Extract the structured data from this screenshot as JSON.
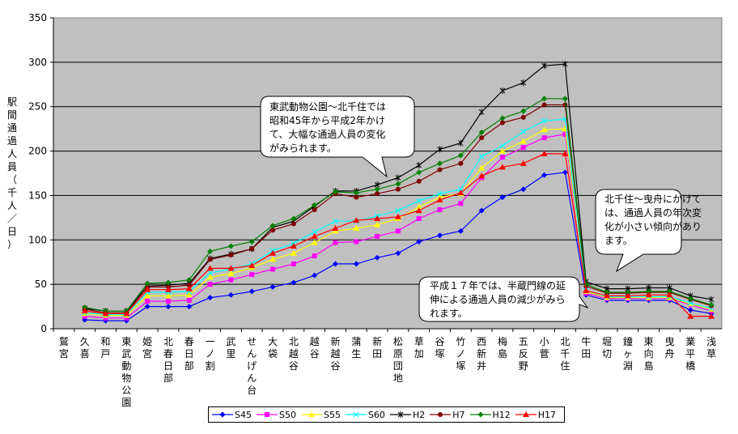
{
  "chart_data": {
    "type": "line",
    "ylabel": "駅間通過人員（千人／日）",
    "ylim": [
      0,
      350
    ],
    "yticks": [
      0,
      50,
      100,
      150,
      200,
      250,
      300,
      350
    ],
    "grid": true,
    "legend_position": "bottom",
    "categories": [
      "鷲宮",
      "久喜",
      "和戸",
      "東武動物公園",
      "姫宮",
      "北春日部",
      "春日部",
      "一ノ割",
      "武里",
      "せんげん台",
      "大袋",
      "北越谷",
      "越谷",
      "新越谷",
      "蒲生",
      "新田",
      "松原団地",
      "草加",
      "谷塚",
      "竹ノ塚",
      "西新井",
      "梅島",
      "五反野",
      "小菅",
      "北千住",
      "牛田",
      "堀切",
      "鐘ヶ淵",
      "東向島",
      "曳舟",
      "業平橋",
      "浅草"
    ],
    "series": [
      {
        "name": "S45",
        "color": "#0000ff",
        "marker": "diamond",
        "values": [
          null,
          10,
          9,
          9,
          25,
          25,
          25,
          35,
          38,
          42,
          47,
          52,
          60,
          73,
          73,
          80,
          85,
          98,
          105,
          110,
          133,
          148,
          157,
          173,
          176,
          38,
          32,
          32,
          32,
          32,
          21,
          17
        ]
      },
      {
        "name": "S50",
        "color": "#ff00ff",
        "marker": "square",
        "values": [
          null,
          14,
          12,
          12,
          31,
          31,
          32,
          50,
          55,
          61,
          67,
          73,
          82,
          97,
          98,
          104,
          110,
          124,
          134,
          141,
          170,
          193,
          204,
          215,
          219,
          40,
          34,
          34,
          34,
          34,
          27,
          20
        ]
      },
      {
        "name": "S55",
        "color": "#ffff00",
        "marker": "triangle",
        "values": [
          null,
          17,
          15,
          15,
          37,
          37,
          38,
          58,
          62,
          69,
          78,
          85,
          97,
          110,
          113,
          117,
          124,
          137,
          148,
          152,
          181,
          200,
          211,
          224,
          225,
          42,
          35,
          35,
          35,
          35,
          28,
          22
        ]
      },
      {
        "name": "S60",
        "color": "#00ffff",
        "marker": "x",
        "values": [
          null,
          18,
          16,
          16,
          41,
          41,
          42,
          63,
          67,
          73,
          88,
          96,
          109,
          121,
          121,
          127,
          133,
          144,
          152,
          157,
          194,
          206,
          222,
          234,
          236,
          43,
          36,
          36,
          36,
          36,
          29,
          23
        ]
      },
      {
        "name": "H2",
        "color": "#000000",
        "marker": "star",
        "values": [
          null,
          23,
          20,
          20,
          48,
          49,
          51,
          79,
          84,
          90,
          114,
          121,
          138,
          155,
          155,
          162,
          170,
          184,
          202,
          209,
          244,
          268,
          277,
          296,
          298,
          53,
          45,
          45,
          46,
          46,
          37,
          33
        ]
      },
      {
        "name": "H7",
        "color": "#800000",
        "marker": "circle",
        "values": [
          null,
          22,
          18,
          18,
          47,
          47,
          49,
          78,
          83,
          90,
          111,
          118,
          134,
          152,
          148,
          152,
          157,
          166,
          179,
          186,
          215,
          232,
          238,
          252,
          252,
          48,
          40,
          40,
          41,
          41,
          33,
          26
        ]
      },
      {
        "name": "H12",
        "color": "#008000",
        "marker": "diamond",
        "values": [
          null,
          24,
          20,
          20,
          51,
          52,
          55,
          87,
          93,
          98,
          116,
          124,
          139,
          154,
          153,
          157,
          163,
          176,
          186,
          195,
          221,
          237,
          245,
          259,
          259,
          50,
          41,
          41,
          42,
          42,
          34,
          27
        ]
      },
      {
        "name": "H17",
        "color": "#ff0000",
        "marker": "triangle",
        "values": [
          null,
          20,
          17,
          17,
          44,
          44,
          45,
          68,
          68,
          71,
          85,
          93,
          104,
          113,
          122,
          124,
          126,
          133,
          145,
          153,
          172,
          182,
          186,
          197,
          197,
          43,
          37,
          37,
          38,
          38,
          14,
          14
        ]
      }
    ]
  },
  "callouts": [
    {
      "text": "東武動物公園～北千住では\n昭和45年から平成2年かけ\nて、大幅な通過人員の変化\nがみられます。"
    },
    {
      "text": "北千住～曳舟にかけて\nは、通過人員の年次変\n化が小さい傾向があり\nます。"
    },
    {
      "text": "平成１７年では、半蔵門線の延\n伸による通過人員の減少がみら\nれます。"
    }
  ]
}
